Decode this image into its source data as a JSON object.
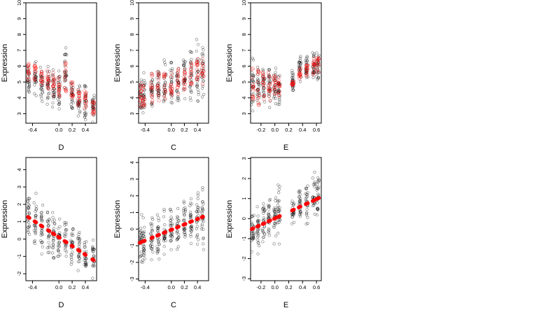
{
  "chart_data": [
    {
      "type": "scatter",
      "xlabel": "D",
      "ylabel": "Expression",
      "xlim": [
        -0.5,
        0.57
      ],
      "ylim": [
        2.4,
        10
      ],
      "xticks": [
        "-0.4",
        "0.0",
        "0.2",
        "0.4"
      ],
      "xtick_values": [
        -0.4,
        0.0,
        0.2,
        0.4
      ],
      "yticks": [
        "3",
        "4",
        "5",
        "6",
        "7",
        "8",
        "9",
        "10"
      ],
      "ytick_values": [
        3,
        4,
        5,
        6,
        7,
        8,
        9,
        10
      ],
      "observed_color": "#000000",
      "fitted_color": "#ff0000",
      "fitted_style": "open",
      "groups": [
        {
          "x": -0.46,
          "observed_center": 5.2,
          "spread": 1.0,
          "fitted": [
            5.2,
            6.4
          ]
        },
        {
          "x": -0.36,
          "observed_center": 5.1,
          "spread": 1.0,
          "fitted": [
            5.0,
            6.2
          ]
        },
        {
          "x": -0.26,
          "observed_center": 4.9,
          "spread": 1.1,
          "fitted": [
            4.7,
            5.9
          ]
        },
        {
          "x": -0.16,
          "observed_center": 4.8,
          "spread": 1.1,
          "fitted": [
            4.5,
            5.7
          ]
        },
        {
          "x": -0.08,
          "observed_center": 4.6,
          "spread": 1.1,
          "fitted": [
            4.3,
            5.5
          ]
        },
        {
          "x": 0.0,
          "observed_center": 4.5,
          "spread": 1.1,
          "fitted": [
            4.1,
            5.3
          ]
        },
        {
          "x": 0.1,
          "observed_center": 5.6,
          "spread": 1.2,
          "fitted": [
            4.0,
            6.5
          ]
        },
        {
          "x": 0.2,
          "observed_center": 4.2,
          "spread": 1.0,
          "fitted": [
            3.8,
            5.0
          ]
        },
        {
          "x": 0.3,
          "observed_center": 3.9,
          "spread": 1.0,
          "fitted": [
            3.6,
            4.6
          ]
        },
        {
          "x": 0.4,
          "observed_center": 3.8,
          "spread": 1.0,
          "fitted": [
            3.3,
            4.4
          ]
        },
        {
          "x": 0.52,
          "observed_center": 3.6,
          "spread": 0.8,
          "fitted": [
            3.0,
            3.8
          ]
        }
      ]
    },
    {
      "type": "scatter",
      "xlabel": "C",
      "ylabel": "Expression",
      "xlim": [
        -0.5,
        0.57
      ],
      "ylim": [
        2.4,
        10
      ],
      "xticks": [
        "-0.4",
        "0.0",
        "0.2",
        "0.4"
      ],
      "xtick_values": [
        -0.4,
        0.0,
        0.2,
        0.4
      ],
      "yticks": [
        "3",
        "4",
        "5",
        "6",
        "7",
        "8",
        "9",
        "10"
      ],
      "ytick_values": [
        3,
        4,
        5,
        6,
        7,
        8,
        9,
        10
      ],
      "observed_color": "#000000",
      "fitted_color": "#ff0000",
      "fitted_style": "open",
      "groups": [
        {
          "x": -0.47,
          "observed_center": 4.0,
          "spread": 1.0,
          "fitted": [
            3.3,
            4.8
          ]
        },
        {
          "x": -0.42,
          "observed_center": 4.1,
          "spread": 1.1,
          "fitted": [
            3.4,
            5.0
          ]
        },
        {
          "x": -0.3,
          "observed_center": 4.5,
          "spread": 1.1,
          "fitted": [
            3.6,
            5.4
          ]
        },
        {
          "x": -0.2,
          "observed_center": 4.7,
          "spread": 1.2,
          "fitted": [
            3.8,
            5.6
          ]
        },
        {
          "x": -0.1,
          "observed_center": 4.8,
          "spread": 1.2,
          "fitted": [
            3.9,
            5.7
          ]
        },
        {
          "x": 0.0,
          "observed_center": 5.0,
          "spread": 1.2,
          "fitted": [
            4.1,
            5.8
          ]
        },
        {
          "x": 0.1,
          "observed_center": 5.1,
          "spread": 1.2,
          "fitted": [
            4.3,
            5.9
          ]
        },
        {
          "x": 0.2,
          "observed_center": 5.3,
          "spread": 1.3,
          "fitted": [
            4.5,
            6.0
          ]
        },
        {
          "x": 0.3,
          "observed_center": 5.4,
          "spread": 1.3,
          "fitted": [
            4.7,
            6.2
          ]
        },
        {
          "x": 0.4,
          "observed_center": 5.6,
          "spread": 1.4,
          "fitted": [
            4.9,
            6.4
          ]
        },
        {
          "x": 0.48,
          "observed_center": 5.6,
          "spread": 1.5,
          "fitted": [
            5.0,
            6.4
          ]
        }
      ]
    },
    {
      "type": "scatter",
      "xlabel": "E",
      "ylabel": "Expression",
      "xlim": [
        -0.35,
        0.67
      ],
      "ylim": [
        2.4,
        10
      ],
      "xticks": [
        "-0.2",
        "0.0",
        "0.2",
        "0.4",
        "0.6"
      ],
      "xtick_values": [
        -0.2,
        0.0,
        0.2,
        0.4,
        0.6
      ],
      "yticks": [
        "3",
        "4",
        "5",
        "6",
        "7",
        "8",
        "9",
        "10"
      ],
      "ytick_values": [
        3,
        4,
        5,
        6,
        7,
        8,
        9,
        10
      ],
      "observed_color": "#000000",
      "fitted_color": "#ff0000",
      "fitted_style": "open",
      "groups": [
        {
          "x": -0.32,
          "observed_center": 4.8,
          "spread": 1.2,
          "fitted": [
            3.4,
            6.0
          ]
        },
        {
          "x": -0.24,
          "observed_center": 4.8,
          "spread": 1.1,
          "fitted": [
            3.6,
            5.8
          ]
        },
        {
          "x": -0.16,
          "observed_center": 4.8,
          "spread": 1.1,
          "fitted": [
            3.7,
            5.7
          ]
        },
        {
          "x": -0.08,
          "observed_center": 4.8,
          "spread": 1.1,
          "fitted": [
            3.9,
            5.6
          ]
        },
        {
          "x": 0.0,
          "observed_center": 4.7,
          "spread": 1.1,
          "fitted": [
            4.0,
            5.4
          ]
        },
        {
          "x": 0.06,
          "observed_center": 4.6,
          "spread": 1.1,
          "fitted": [
            4.1,
            5.3
          ]
        },
        {
          "x": 0.26,
          "observed_center": 5.0,
          "spread": 0.6,
          "fitted": [
            4.9,
            5.0
          ]
        },
        {
          "x": 0.36,
          "observed_center": 5.8,
          "spread": 0.8,
          "fitted": [
            5.2,
            6.0
          ]
        },
        {
          "x": 0.46,
          "observed_center": 5.9,
          "spread": 0.8,
          "fitted": [
            5.4,
            6.2
          ]
        },
        {
          "x": 0.56,
          "observed_center": 6.0,
          "spread": 0.9,
          "fitted": [
            5.6,
            6.4
          ]
        },
        {
          "x": 0.62,
          "observed_center": 5.9,
          "spread": 0.9,
          "fitted": [
            5.6,
            6.6
          ]
        }
      ]
    },
    {
      "type": "scatter",
      "xlabel": "D",
      "ylabel": "Expression",
      "xlim": [
        -0.5,
        0.57
      ],
      "ylim": [
        -2.4,
        4.7
      ],
      "xticks": [
        "-0.4",
        "0.0",
        "0.2",
        "0.4"
      ],
      "xtick_values": [
        -0.4,
        0.0,
        0.2,
        0.4
      ],
      "yticks": [
        "-2",
        "-1",
        "0",
        "1",
        "2",
        "3",
        "4"
      ],
      "ytick_values": [
        -2,
        -1,
        0,
        1,
        2,
        3,
        4
      ],
      "observed_color": "#000000",
      "fitted_color": "#ff0000",
      "fitted_style": "solid",
      "fitted_line": {
        "x": [
          -0.46,
          0.52
        ],
        "y": [
          1.25,
          -1.2
        ]
      },
      "groups": [
        {
          "x": -0.46,
          "observed_center": 1.2,
          "spread": 1.3
        },
        {
          "x": -0.36,
          "observed_center": 0.9,
          "spread": 1.2
        },
        {
          "x": -0.26,
          "observed_center": 0.7,
          "spread": 1.2
        },
        {
          "x": -0.16,
          "observed_center": 0.4,
          "spread": 1.1
        },
        {
          "x": -0.08,
          "observed_center": 0.2,
          "spread": 1.1
        },
        {
          "x": 0.0,
          "observed_center": 0.0,
          "spread": 1.1
        },
        {
          "x": 0.1,
          "observed_center": -0.2,
          "spread": 1.2
        },
        {
          "x": 0.2,
          "observed_center": -0.5,
          "spread": 1.1
        },
        {
          "x": 0.3,
          "observed_center": -0.7,
          "spread": 1.0
        },
        {
          "x": 0.4,
          "observed_center": -0.9,
          "spread": 0.9
        },
        {
          "x": 0.52,
          "observed_center": -1.1,
          "spread": 0.8
        }
      ]
    },
    {
      "type": "scatter",
      "xlabel": "C",
      "ylabel": "Expression",
      "xlim": [
        -0.5,
        0.57
      ],
      "ylim": [
        -3.1,
        4.3
      ],
      "xticks": [
        "-0.4",
        "0.0",
        "0.2",
        "0.4"
      ],
      "xtick_values": [
        -0.4,
        0.0,
        0.2,
        0.4
      ],
      "yticks": [
        "-3",
        "-2",
        "-1",
        "0",
        "1",
        "2",
        "3",
        "4"
      ],
      "ytick_values": [
        -3,
        -2,
        -1,
        0,
        1,
        2,
        3,
        4
      ],
      "observed_color": "#000000",
      "fitted_color": "#ff0000",
      "fitted_style": "solid",
      "fitted_line": {
        "x": [
          -0.47,
          0.52
        ],
        "y": [
          -0.8,
          0.8
        ]
      },
      "groups": [
        {
          "x": -0.47,
          "observed_center": -0.8,
          "spread": 1.3
        },
        {
          "x": -0.42,
          "observed_center": -0.7,
          "spread": 1.3
        },
        {
          "x": -0.3,
          "observed_center": -0.5,
          "spread": 1.2
        },
        {
          "x": -0.2,
          "observed_center": -0.3,
          "spread": 1.2
        },
        {
          "x": -0.1,
          "observed_center": -0.2,
          "spread": 1.2
        },
        {
          "x": 0.0,
          "observed_center": 0.0,
          "spread": 1.2
        },
        {
          "x": 0.1,
          "observed_center": 0.2,
          "spread": 1.2
        },
        {
          "x": 0.2,
          "observed_center": 0.3,
          "spread": 1.2
        },
        {
          "x": 0.3,
          "observed_center": 0.5,
          "spread": 1.3
        },
        {
          "x": 0.4,
          "observed_center": 0.6,
          "spread": 1.4
        },
        {
          "x": 0.48,
          "observed_center": 0.7,
          "spread": 1.5
        }
      ]
    },
    {
      "type": "scatter",
      "xlabel": "E",
      "ylabel": "Expression",
      "xlim": [
        -0.35,
        0.67
      ],
      "ylim": [
        -3.1,
        3.05
      ],
      "xticks": [
        "-0.2",
        "0.0",
        "0.2",
        "0.4",
        "0.6"
      ],
      "xtick_values": [
        -0.2,
        0.0,
        0.2,
        0.4,
        0.6
      ],
      "yticks": [
        "-3",
        "-2",
        "-1",
        "0",
        "1",
        "2",
        "3"
      ],
      "ytick_values": [
        -3,
        -2,
        -1,
        0,
        1,
        2,
        3
      ],
      "observed_color": "#000000",
      "fitted_color": "#ff0000",
      "fitted_style": "solid",
      "fitted_line": {
        "x": [
          -0.32,
          0.62
        ],
        "y": [
          -0.5,
          1.0
        ]
      },
      "groups": [
        {
          "x": -0.32,
          "observed_center": -0.5,
          "spread": 1.2
        },
        {
          "x": -0.24,
          "observed_center": -0.3,
          "spread": 1.1
        },
        {
          "x": -0.16,
          "observed_center": -0.2,
          "spread": 1.1
        },
        {
          "x": -0.08,
          "observed_center": 0.0,
          "spread": 1.1
        },
        {
          "x": 0.0,
          "observed_center": 0.1,
          "spread": 1.1
        },
        {
          "x": 0.06,
          "observed_center": 0.2,
          "spread": 1.2
        },
        {
          "x": 0.26,
          "observed_center": 0.4,
          "spread": 0.5
        },
        {
          "x": 0.36,
          "observed_center": 0.7,
          "spread": 0.9
        },
        {
          "x": 0.46,
          "observed_center": 0.8,
          "spread": 0.9
        },
        {
          "x": 0.56,
          "observed_center": 0.9,
          "spread": 1.0
        },
        {
          "x": 0.62,
          "observed_center": 1.0,
          "spread": 1.0
        }
      ]
    }
  ]
}
